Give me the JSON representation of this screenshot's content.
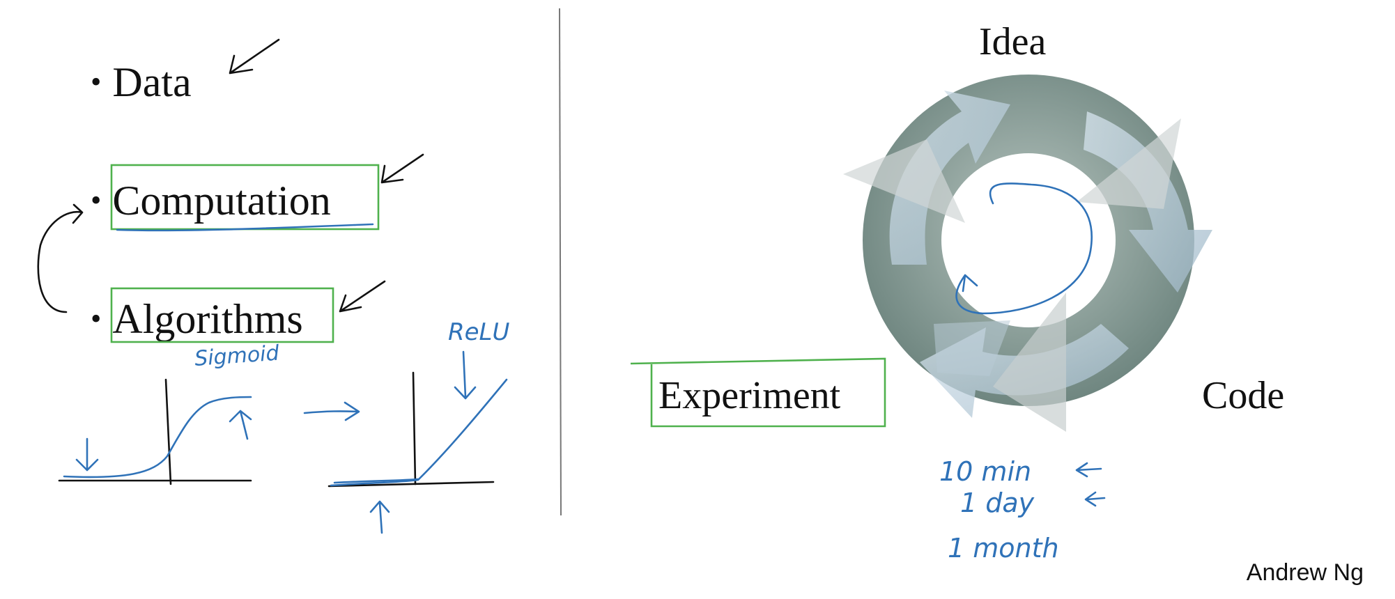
{
  "left_panel": {
    "bullets": [
      "Data",
      "Computation",
      "Algorithms"
    ],
    "annotations": {
      "sigmoid": "Sigmoid",
      "relu": "ReLU"
    }
  },
  "right_panel": {
    "cycle_labels": {
      "idea": "Idea",
      "code": "Code",
      "experiment": "Experiment"
    },
    "notes": [
      "10 min",
      "1 day",
      "1 month"
    ]
  },
  "author": "Andrew Ng",
  "colors": {
    "ink_blue": "#2f72b8",
    "box_green": "#4fb14d",
    "ring_gray": "#8a9c96"
  }
}
